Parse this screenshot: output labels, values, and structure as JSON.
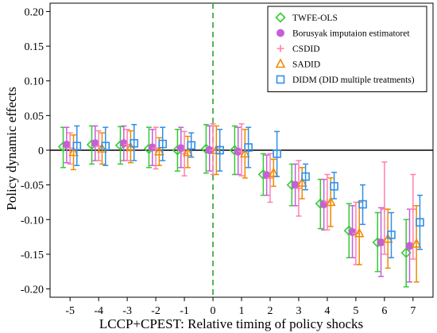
{
  "chart_data": {
    "type": "scatter",
    "title": "",
    "xlabel": "LCCP+CPEST: Relative timing of policy shocks",
    "ylabel": "Policy dynamic effects",
    "xlim": [
      -5.7,
      7.7
    ],
    "ylim": [
      -0.212,
      0.212
    ],
    "x_ticks": [
      -5,
      -4,
      -3,
      -2,
      -1,
      0,
      1,
      2,
      3,
      4,
      5,
      6,
      7
    ],
    "y_ticks": [
      0.2,
      0.15,
      0.1,
      0.05,
      0,
      -0.05,
      -0.1,
      -0.15,
      -0.2
    ],
    "y_tick_labels": [
      "0.20",
      "0.15",
      "0.10",
      "0.05",
      "0",
      "-0.05",
      "-0.10",
      "-0.15",
      "-0.20"
    ],
    "zero_line": true,
    "vertical_line_x": 0,
    "grid": false,
    "legend_position": "top-right",
    "series": [
      {
        "name": "TWFE-OLS",
        "marker": "diamond",
        "color": "#33cc33",
        "offset": -0.24,
        "points": [
          {
            "x": -5,
            "y": 0.005,
            "lo": -0.025,
            "hi": 0.033
          },
          {
            "x": -4,
            "y": 0.008,
            "lo": -0.02,
            "hi": 0.035
          },
          {
            "x": -3,
            "y": 0.007,
            "lo": -0.02,
            "hi": 0.034
          },
          {
            "x": -2,
            "y": 0.002,
            "lo": -0.025,
            "hi": 0.033
          },
          {
            "x": -1,
            "y": 0.0,
            "lo": -0.03,
            "hi": 0.03
          },
          {
            "x": 0,
            "y": 0.002,
            "lo": -0.033,
            "hi": 0.037
          },
          {
            "x": 1,
            "y": 0.0,
            "lo": -0.035,
            "hi": 0.035
          },
          {
            "x": 2,
            "y": -0.035,
            "lo": -0.065,
            "hi": -0.005
          },
          {
            "x": 3,
            "y": -0.05,
            "lo": -0.08,
            "hi": -0.02
          },
          {
            "x": 4,
            "y": -0.077,
            "lo": -0.113,
            "hi": -0.042
          },
          {
            "x": 5,
            "y": -0.116,
            "lo": -0.155,
            "hi": -0.077
          },
          {
            "x": 6,
            "y": -0.133,
            "lo": -0.175,
            "hi": -0.09
          },
          {
            "x": 7,
            "y": -0.148,
            "lo": -0.197,
            "hi": -0.1
          }
        ]
      },
      {
        "name": "Borusyak imputaion estimatoret",
        "marker": "circle",
        "color": "#c45fd6",
        "offset": -0.12,
        "points": [
          {
            "x": -5,
            "y": 0.008,
            "lo": -0.018,
            "hi": 0.033
          },
          {
            "x": -4,
            "y": 0.01,
            "lo": -0.015,
            "hi": 0.035
          },
          {
            "x": -3,
            "y": 0.01,
            "lo": -0.015,
            "hi": 0.035
          },
          {
            "x": -2,
            "y": 0.004,
            "lo": -0.022,
            "hi": 0.03
          },
          {
            "x": -1,
            "y": 0.003,
            "lo": -0.025,
            "hi": 0.033
          },
          {
            "x": 0,
            "y": 0.0,
            "lo": -0.03,
            "hi": 0.035
          },
          {
            "x": 1,
            "y": -0.002,
            "lo": -0.035,
            "hi": 0.033
          },
          {
            "x": 2,
            "y": -0.036,
            "lo": -0.065,
            "hi": -0.007
          },
          {
            "x": 3,
            "y": -0.05,
            "lo": -0.08,
            "hi": -0.02
          },
          {
            "x": 4,
            "y": -0.078,
            "lo": -0.115,
            "hi": -0.042
          },
          {
            "x": 5,
            "y": -0.118,
            "lo": -0.155,
            "hi": -0.08
          },
          {
            "x": 6,
            "y": -0.133,
            "lo": -0.182,
            "hi": -0.083
          },
          {
            "x": 7,
            "y": -0.138,
            "lo": -0.19,
            "hi": -0.085
          }
        ]
      },
      {
        "name": "CSDID",
        "marker": "plus",
        "color": "#ff80b0",
        "offset": 0.0,
        "points": [
          {
            "x": -5,
            "y": 0.003,
            "lo": -0.02,
            "hi": 0.025
          },
          {
            "x": -4,
            "y": 0.006,
            "lo": -0.015,
            "hi": 0.028
          },
          {
            "x": -3,
            "y": 0.008,
            "lo": -0.015,
            "hi": 0.03
          },
          {
            "x": -2,
            "y": 0.003,
            "lo": -0.027,
            "hi": 0.033
          },
          {
            "x": -1,
            "y": -0.005,
            "lo": -0.037,
            "hi": 0.027
          },
          {
            "x": 0,
            "y": 0.0,
            "lo": -0.035,
            "hi": 0.038
          },
          {
            "x": 1,
            "y": -0.002,
            "lo": -0.037,
            "hi": 0.038
          },
          {
            "x": 2,
            "y": -0.04,
            "lo": -0.075,
            "hi": -0.005
          },
          {
            "x": 3,
            "y": -0.055,
            "lo": -0.095,
            "hi": -0.015
          },
          {
            "x": 4,
            "y": -0.075,
            "lo": -0.115,
            "hi": -0.035
          },
          {
            "x": 5,
            "y": -0.12,
            "lo": -0.165,
            "hi": -0.075
          },
          {
            "x": 6,
            "y": -0.085,
            "lo": -0.15,
            "hi": -0.017
          },
          {
            "x": 7,
            "y": -0.085,
            "lo": -0.157,
            "hi": -0.035
          }
        ]
      },
      {
        "name": "SADID",
        "marker": "triangle",
        "color": "#f08a00",
        "offset": 0.12,
        "points": [
          {
            "x": -5,
            "y": -0.003,
            "lo": -0.028,
            "hi": 0.022
          },
          {
            "x": -4,
            "y": 0.002,
            "lo": -0.02,
            "hi": 0.025
          },
          {
            "x": -3,
            "y": 0.004,
            "lo": -0.018,
            "hi": 0.028
          },
          {
            "x": -2,
            "y": -0.002,
            "lo": -0.022,
            "hi": 0.018
          },
          {
            "x": -1,
            "y": -0.003,
            "lo": -0.025,
            "hi": 0.02
          },
          {
            "x": 0,
            "y": 0.0,
            "lo": -0.035,
            "hi": 0.035
          },
          {
            "x": 1,
            "y": -0.005,
            "lo": -0.04,
            "hi": 0.03
          },
          {
            "x": 2,
            "y": -0.033,
            "lo": -0.052,
            "hi": -0.013
          },
          {
            "x": 3,
            "y": -0.047,
            "lo": -0.07,
            "hi": -0.025
          },
          {
            "x": 4,
            "y": -0.075,
            "lo": -0.11,
            "hi": -0.04
          },
          {
            "x": 5,
            "y": -0.12,
            "lo": -0.165,
            "hi": -0.075
          },
          {
            "x": 6,
            "y": -0.128,
            "lo": -0.17,
            "hi": -0.085
          },
          {
            "x": 7,
            "y": -0.135,
            "lo": -0.19,
            "hi": -0.08
          }
        ]
      },
      {
        "name": "DIDM (DID multiple treatments)",
        "marker": "square",
        "color": "#2f8fe8",
        "offset": 0.24,
        "points": [
          {
            "x": -5,
            "y": 0.006,
            "lo": -0.022,
            "hi": 0.035
          },
          {
            "x": -4,
            "y": 0.006,
            "lo": -0.022,
            "hi": 0.033
          },
          {
            "x": -3,
            "y": 0.01,
            "lo": -0.015,
            "hi": 0.037
          },
          {
            "x": -2,
            "y": 0.009,
            "lo": -0.015,
            "hi": 0.033
          },
          {
            "x": -1,
            "y": 0.007,
            "lo": -0.01,
            "hi": 0.025
          },
          {
            "x": 0,
            "y": 0.0,
            "lo": -0.03,
            "hi": 0.03
          },
          {
            "x": 1,
            "y": 0.004,
            "lo": -0.025,
            "hi": 0.033
          },
          {
            "x": 2,
            "y": -0.005,
            "lo": -0.038,
            "hi": 0.027
          },
          {
            "x": 3,
            "y": -0.038,
            "lo": -0.057,
            "hi": -0.02
          },
          {
            "x": 4,
            "y": -0.052,
            "lo": -0.07,
            "hi": -0.032
          },
          {
            "x": 5,
            "y": -0.078,
            "lo": -0.107,
            "hi": -0.05
          },
          {
            "x": 6,
            "y": -0.122,
            "lo": -0.155,
            "hi": -0.09
          },
          {
            "x": 7,
            "y": -0.104,
            "lo": -0.143,
            "hi": -0.065
          }
        ]
      }
    ]
  }
}
